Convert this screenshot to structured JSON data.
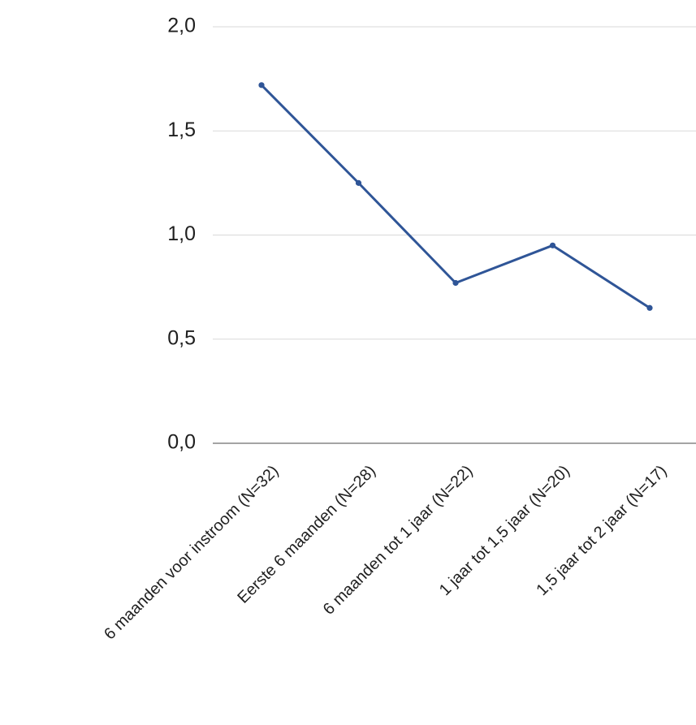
{
  "chart_data": {
    "type": "line",
    "categories": [
      "6 maanden voor instroom (N=32)",
      "Eerste 6 maanden (N=28)",
      "6 maanden tot 1 jaar (N=22)",
      "1 jaar tot 1,5 jaar (N=20)",
      "1,5 jaar tot 2 jaar (N=17)"
    ],
    "series": [
      {
        "values": [
          1.72,
          1.25,
          0.77,
          0.95,
          0.65
        ],
        "color": "#2f5597"
      }
    ],
    "ylim": [
      0,
      2
    ],
    "yticks": [
      0,
      0.5,
      1,
      1.5,
      2
    ],
    "ytick_labels": [
      "0,0",
      "0,5",
      "1,0",
      "1,5",
      "2,0"
    ],
    "grid": true,
    "legend": "none",
    "title": "",
    "xlabel": "",
    "ylabel": ""
  }
}
